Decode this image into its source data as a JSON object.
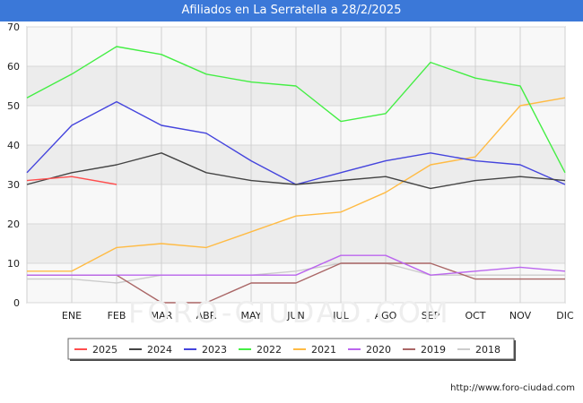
{
  "page": {
    "url": "http://www.foro-ciudad.com",
    "watermark": "FORO-CIUDAD.COM"
  },
  "chart_data": {
    "type": "line",
    "title": "Afiliados en La Serratella a 28/2/2025",
    "xlabel": "",
    "ylabel": "",
    "categories": [
      "",
      "ENE",
      "FEB",
      "MAR",
      "ABR",
      "MAY",
      "JUN",
      "JUL",
      "AGO",
      "SEP",
      "OCT",
      "NOV",
      "DIC"
    ],
    "ylim": [
      0,
      70
    ],
    "yticks": [
      0,
      10,
      20,
      30,
      40,
      50,
      60,
      70
    ],
    "grid": true,
    "legend_position": "bottom",
    "series": [
      {
        "name": "2025",
        "color": "#ff4d4d",
        "values": [
          31,
          32,
          30,
          null,
          null,
          null,
          null,
          null,
          null,
          null,
          null,
          null,
          null
        ]
      },
      {
        "name": "2024",
        "color": "#444444",
        "values": [
          30,
          33,
          35,
          38,
          33,
          31,
          30,
          31,
          32,
          29,
          31,
          32,
          31
        ]
      },
      {
        "name": "2023",
        "color": "#4444dd",
        "values": [
          33,
          45,
          51,
          45,
          43,
          36,
          30,
          33,
          36,
          38,
          36,
          35,
          30
        ]
      },
      {
        "name": "2022",
        "color": "#44ee44",
        "values": [
          52,
          58,
          65,
          63,
          58,
          56,
          55,
          46,
          48,
          61,
          57,
          55,
          33
        ]
      },
      {
        "name": "2021",
        "color": "#ffbb44",
        "values": [
          8,
          8,
          14,
          15,
          14,
          18,
          22,
          23,
          28,
          35,
          37,
          50,
          52
        ]
      },
      {
        "name": "2020",
        "color": "#bb66ee",
        "values": [
          7,
          7,
          7,
          7,
          7,
          7,
          7,
          12,
          12,
          7,
          8,
          9,
          8
        ]
      },
      {
        "name": "2019",
        "color": "#aa6666",
        "values": [
          7,
          7,
          7,
          0,
          0,
          5,
          5,
          10,
          10,
          10,
          6,
          6,
          6
        ]
      },
      {
        "name": "2018",
        "color": "#cccccc",
        "values": [
          6,
          6,
          5,
          7,
          7,
          7,
          8,
          10,
          10,
          7,
          7,
          7,
          7
        ]
      }
    ]
  }
}
